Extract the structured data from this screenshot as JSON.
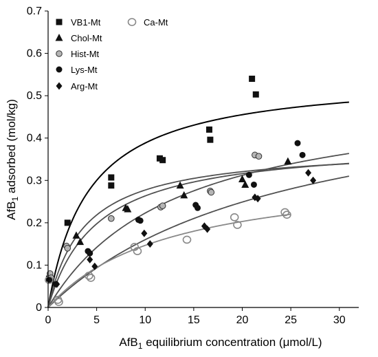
{
  "chart_data": {
    "type": "scatter",
    "xlabel": {
      "pre": "AfB",
      "sub": "1",
      "post": " equilibrium  concentration (μmol/L)"
    },
    "ylabel": {
      "pre": "AfB",
      "sub": "1",
      "post": " adsorbed (mol/kg)"
    },
    "xlim": [
      0,
      32
    ],
    "ylim": [
      0,
      0.7
    ],
    "xticks": [
      0,
      5,
      10,
      15,
      20,
      25,
      30
    ],
    "yticks": [
      0,
      0.1,
      0.2,
      0.3,
      0.4,
      0.5,
      0.6,
      0.7
    ],
    "xtick_labels": [
      "0",
      "5",
      "10",
      "15",
      "20",
      "25",
      "30"
    ],
    "ytick_labels": [
      "0",
      "0.1",
      "0.2",
      "0.3",
      "0.4",
      "0.5",
      "0.6",
      "0.7"
    ],
    "grid": false,
    "legend": {
      "placement": "top-left"
    },
    "series": [
      {
        "name": "VB1-Mt",
        "marker": "square",
        "color": "#111111",
        "x": [
          0.1,
          0.3,
          2.0,
          6.5,
          6.5,
          11.5,
          11.8,
          16.6,
          16.7,
          21.0,
          21.4
        ],
        "y": [
          0.068,
          0.065,
          0.2,
          0.307,
          0.288,
          0.352,
          0.348,
          0.42,
          0.396,
          0.54,
          0.503
        ]
      },
      {
        "name": "Chol-Mt",
        "marker": "triangle",
        "color": "#111111",
        "x": [
          0.2,
          2.9,
          3.3,
          8.0,
          8.2,
          13.6,
          14.0,
          20.0,
          20.3,
          24.7
        ],
        "y": [
          0.07,
          0.17,
          0.155,
          0.235,
          0.232,
          0.288,
          0.265,
          0.303,
          0.29,
          0.345
        ]
      },
      {
        "name": "Hist-Mt",
        "marker": "circle-gray",
        "color": "#aaaaaa",
        "x": [
          0.2,
          0.3,
          1.9,
          2.0,
          6.5,
          11.6,
          11.8,
          16.7,
          16.8,
          21.3,
          21.7
        ],
        "y": [
          0.08,
          0.07,
          0.145,
          0.14,
          0.21,
          0.237,
          0.24,
          0.275,
          0.272,
          0.36,
          0.357
        ]
      },
      {
        "name": "Lys-Mt",
        "marker": "circle",
        "color": "#111111",
        "x": [
          0.2,
          0.8,
          4.1,
          4.3,
          9.3,
          9.5,
          15.2,
          15.4,
          20.7,
          21.2,
          25.7,
          26.2
        ],
        "y": [
          0.065,
          0.055,
          0.133,
          0.128,
          0.207,
          0.205,
          0.242,
          0.235,
          0.313,
          0.29,
          0.388,
          0.36
        ]
      },
      {
        "name": "Arg-Mt",
        "marker": "diamond",
        "color": "#111111",
        "x": [
          0.2,
          0.9,
          4.3,
          4.8,
          9.9,
          10.5,
          16.1,
          16.4,
          21.3,
          21.6,
          26.8,
          27.3
        ],
        "y": [
          0.065,
          0.055,
          0.113,
          0.097,
          0.175,
          0.15,
          0.192,
          0.185,
          0.26,
          0.257,
          0.318,
          0.3
        ]
      },
      {
        "name": "Ca-Mt",
        "marker": "open-circle",
        "color": "#888888",
        "x": [
          0.1,
          1.0,
          1.1,
          4.2,
          4.4,
          8.9,
          9.2,
          14.3,
          19.2,
          19.5,
          24.4,
          24.6
        ],
        "y": [
          0.065,
          0.018,
          0.013,
          0.075,
          0.07,
          0.143,
          0.133,
          0.16,
          0.213,
          0.195,
          0.225,
          0.219
        ]
      }
    ],
    "curves": [
      {
        "fit_for": "VB1-Mt",
        "model": "langmuir",
        "qmax": 0.55,
        "K": 0.24,
        "x_max": 31,
        "color": "#000000"
      },
      {
        "fit_for": "Chol-Mt",
        "model": "langmuir",
        "qmax": 0.38,
        "K": 0.27,
        "x_max": 31,
        "color": "#505050"
      },
      {
        "fit_for": "Hist-Mt",
        "model": "langmuir",
        "qmax": 0.395,
        "K": 0.2,
        "x_max": 31,
        "color": "#505050"
      },
      {
        "fit_for": "Lys-Mt",
        "model": "langmuir",
        "qmax": 0.52,
        "K": 0.075,
        "x_max": 31,
        "color": "#505050"
      },
      {
        "fit_for": "Arg-Mt",
        "model": "langmuir",
        "qmax": 0.56,
        "K": 0.04,
        "x_max": 31,
        "color": "#505050"
      },
      {
        "fit_for": "Ca-Mt",
        "model": "langmuir",
        "qmax": 0.33,
        "K": 0.08,
        "x_max": 25,
        "color": "#888888"
      }
    ]
  }
}
